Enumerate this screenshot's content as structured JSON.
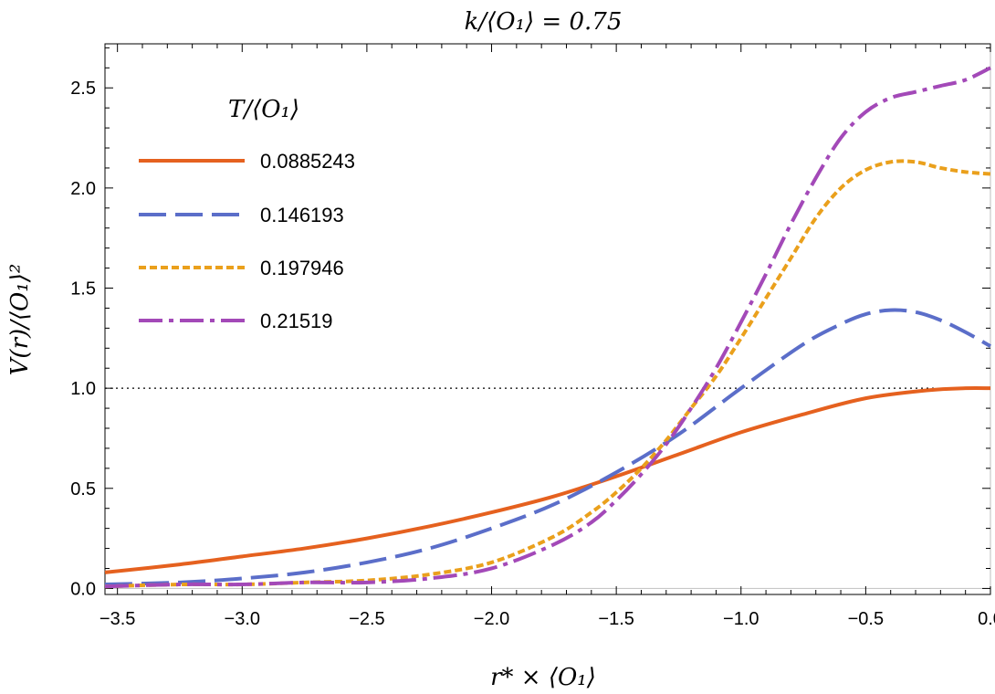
{
  "chart_data": {
    "type": "line",
    "title": "k/⟨O₁⟩ = 0.75",
    "xlabel": "r* × ⟨O₁⟩",
    "ylabel": "V(r)/⟨O₁⟩²",
    "xlim": [
      -3.55,
      0.0
    ],
    "ylim": [
      -0.03,
      2.72
    ],
    "xticks": [
      -3.5,
      -3.0,
      -2.5,
      -2.0,
      -1.5,
      -1.0,
      -0.5,
      0.0
    ],
    "xtick_labels": [
      "−3.5",
      "−3.0",
      "−2.5",
      "−2.0",
      "−1.5",
      "−1.0",
      "−0.5",
      "0.0"
    ],
    "yticks": [
      0.0,
      0.5,
      1.0,
      1.5,
      2.0,
      2.5
    ],
    "ytick_labels": [
      "0.0",
      "0.5",
      "1.0",
      "1.5",
      "2.0",
      "2.5"
    ],
    "reference_line": {
      "y": 1.0,
      "style": "dotted"
    },
    "legend": {
      "title": "T/⟨O₁⟩",
      "position": "top-left"
    },
    "series": [
      {
        "name": "0.0885243",
        "color": "#e5611f",
        "dash": "solid",
        "x": [
          -3.55,
          -3.25,
          -3.0,
          -2.75,
          -2.5,
          -2.25,
          -2.0,
          -1.75,
          -1.5,
          -1.25,
          -1.0,
          -0.75,
          -0.5,
          -0.25,
          -0.1,
          0.0
        ],
        "y": [
          0.08,
          0.12,
          0.16,
          0.2,
          0.25,
          0.31,
          0.38,
          0.46,
          0.56,
          0.67,
          0.78,
          0.87,
          0.95,
          0.99,
          1.0,
          1.0
        ]
      },
      {
        "name": "0.146193",
        "color": "#5b6ec9",
        "dash": "long-dash",
        "x": [
          -3.55,
          -3.25,
          -3.0,
          -2.75,
          -2.5,
          -2.25,
          -2.0,
          -1.75,
          -1.5,
          -1.25,
          -1.0,
          -0.75,
          -0.6,
          -0.5,
          -0.4,
          -0.3,
          -0.2,
          -0.1,
          0.0
        ],
        "y": [
          0.02,
          0.03,
          0.05,
          0.08,
          0.13,
          0.2,
          0.3,
          0.42,
          0.58,
          0.77,
          1.0,
          1.22,
          1.32,
          1.37,
          1.39,
          1.38,
          1.34,
          1.28,
          1.21
        ]
      },
      {
        "name": "0.197946",
        "color": "#eaa01c",
        "dash": "short-dash",
        "x": [
          -3.55,
          -3.25,
          -3.0,
          -2.75,
          -2.5,
          -2.25,
          -2.0,
          -1.75,
          -1.6,
          -1.5,
          -1.4,
          -1.3,
          -1.2,
          -1.1,
          -1.0,
          -0.9,
          -0.8,
          -0.7,
          -0.6,
          -0.5,
          -0.4,
          -0.3,
          -0.2,
          -0.1,
          0.0
        ],
        "y": [
          0.01,
          0.02,
          0.02,
          0.03,
          0.04,
          0.07,
          0.13,
          0.26,
          0.38,
          0.48,
          0.6,
          0.74,
          0.9,
          1.06,
          1.25,
          1.45,
          1.65,
          1.85,
          2.0,
          2.09,
          2.13,
          2.13,
          2.1,
          2.08,
          2.07
        ]
      },
      {
        "name": "0.21519",
        "color": "#a349b8",
        "dash": "dash-dot",
        "x": [
          -3.55,
          -3.25,
          -3.0,
          -2.75,
          -2.5,
          -2.25,
          -2.0,
          -1.75,
          -1.6,
          -1.5,
          -1.4,
          -1.3,
          -1.2,
          -1.1,
          -1.0,
          -0.9,
          -0.8,
          -0.7,
          -0.6,
          -0.5,
          -0.4,
          -0.3,
          -0.2,
          -0.1,
          0.0
        ],
        "y": [
          0.01,
          0.02,
          0.02,
          0.03,
          0.03,
          0.05,
          0.1,
          0.22,
          0.33,
          0.44,
          0.57,
          0.72,
          0.9,
          1.1,
          1.33,
          1.57,
          1.82,
          2.05,
          2.25,
          2.38,
          2.45,
          2.48,
          2.51,
          2.54,
          2.6
        ]
      }
    ]
  }
}
